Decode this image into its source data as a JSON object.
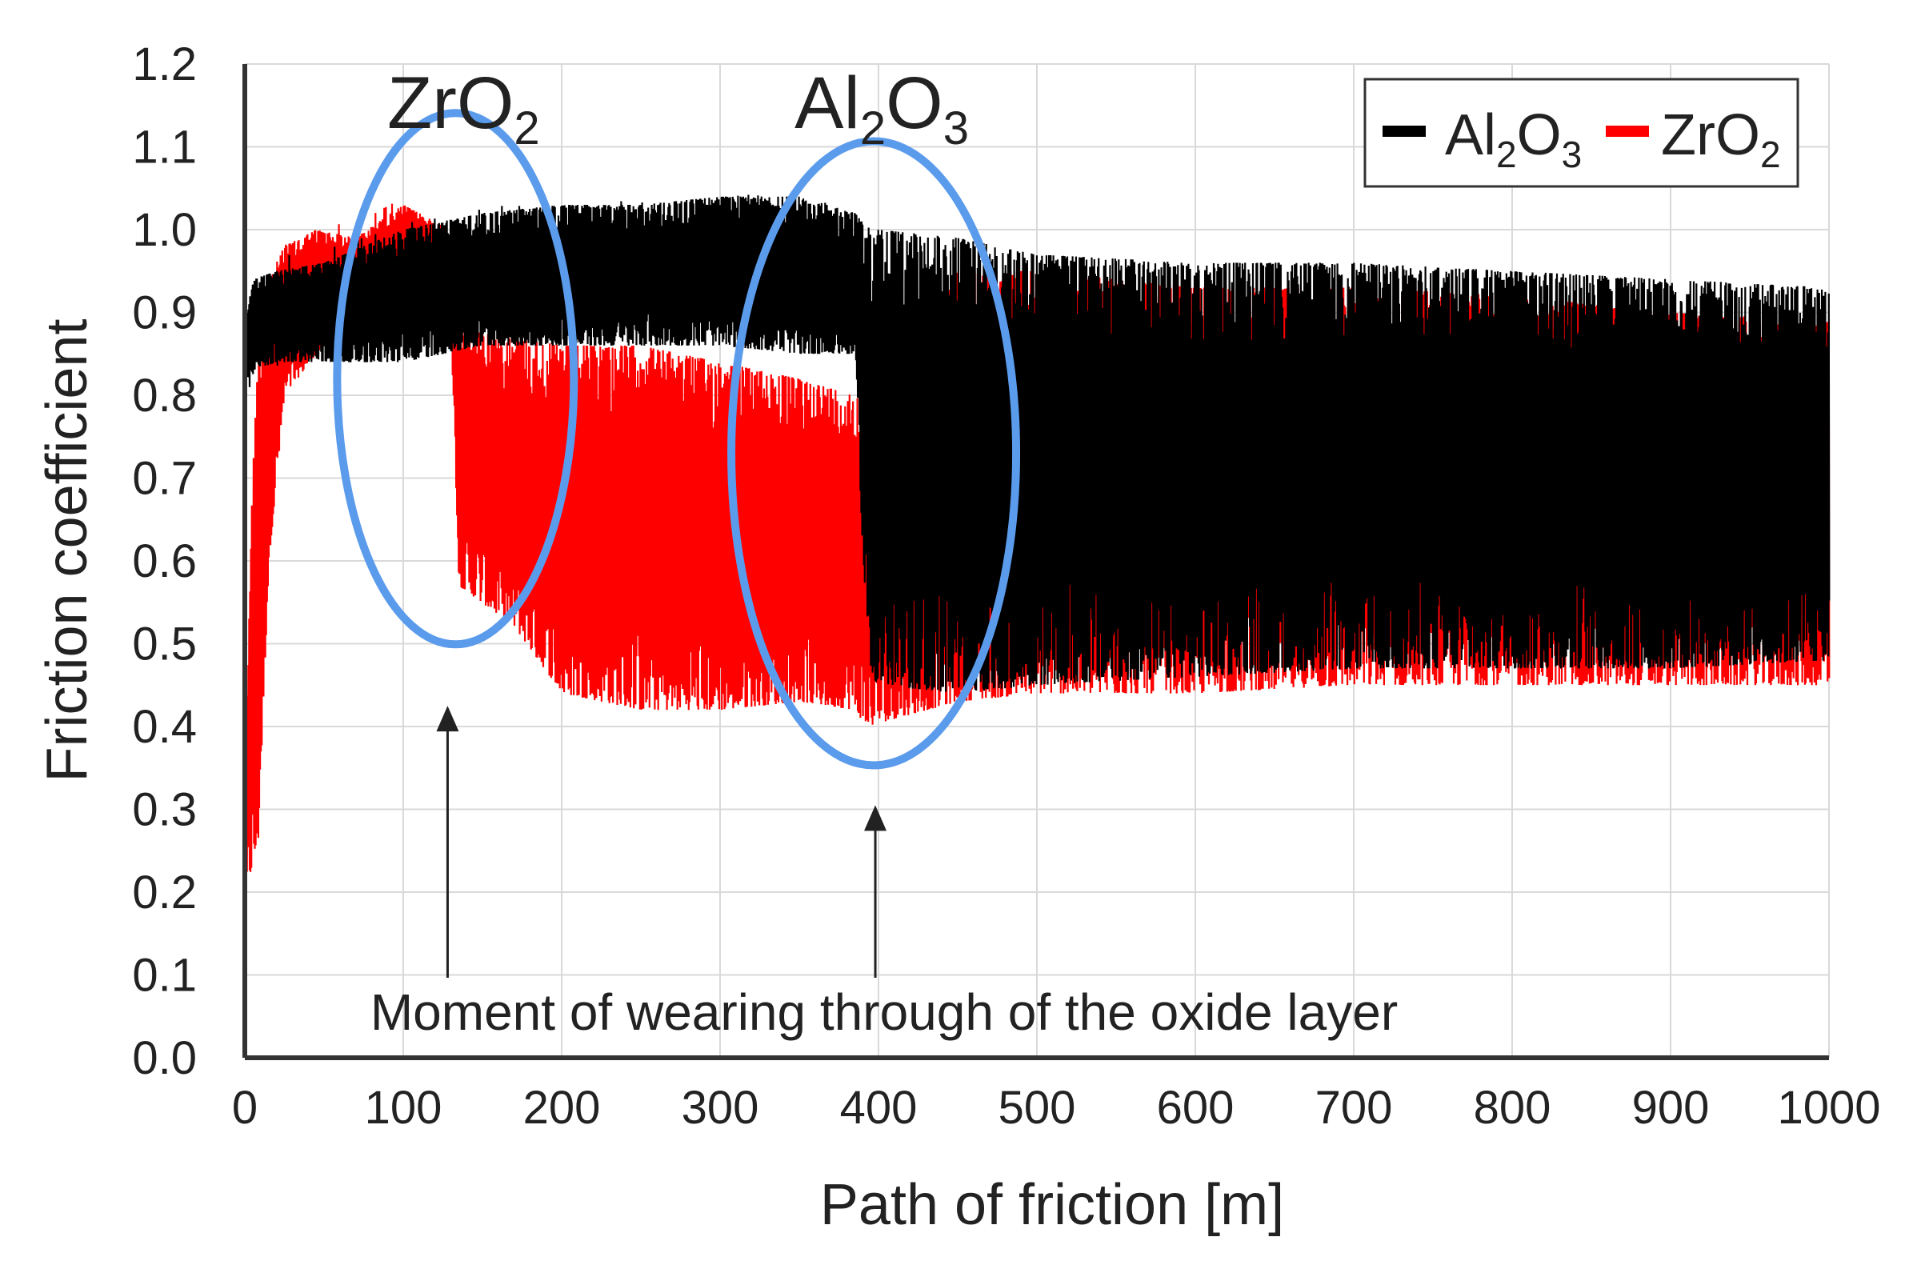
{
  "chart_data": {
    "type": "line",
    "title": "",
    "xlabel": "Path of friction [m]",
    "ylabel": "Friction coefficient",
    "xlim": [
      0,
      1000
    ],
    "ylim": [
      0,
      1.2
    ],
    "x_ticks": [
      0,
      100,
      200,
      300,
      400,
      500,
      600,
      700,
      800,
      900,
      1000
    ],
    "y_ticks": [
      0.0,
      0.1,
      0.2,
      0.3,
      0.4,
      0.5,
      0.6,
      0.7,
      0.8,
      0.9,
      1.0,
      1.1,
      1.2
    ],
    "x_tick_labels": [
      "0",
      "100",
      "200",
      "300",
      "400",
      "500",
      "600",
      "700",
      "800",
      "900",
      "1000"
    ],
    "y_tick_labels": [
      "0.0",
      "0.1",
      "0.2",
      "0.3",
      "0.4",
      "0.5",
      "0.6",
      "0.7",
      "0.8",
      "0.9",
      "1.0",
      "1.1",
      "1.2"
    ],
    "grid": true,
    "legend": {
      "position": "top-right",
      "entries": [
        {
          "base": "Al",
          "sub1": "2",
          "mid": "O",
          "sub2": "3",
          "color": "#000000"
        },
        {
          "base": "ZrO",
          "sub1": "2",
          "mid": "",
          "sub2": "",
          "color": "#ff0000"
        }
      ]
    },
    "series": [
      {
        "name": "ZrO2",
        "color": "#ff0000",
        "x": [
          0,
          3,
          8,
          15,
          25,
          45,
          70,
          100,
          130,
          135,
          170,
          200,
          250,
          300,
          350,
          385,
          392,
          450,
          500,
          600,
          700,
          800,
          900,
          1000
        ],
        "high": [
          0.24,
          0.6,
          0.85,
          0.94,
          0.98,
          1.0,
          0.99,
          1.03,
          1.0,
          0.88,
          0.87,
          0.86,
          0.86,
          0.84,
          0.82,
          0.8,
          0.8,
          0.95,
          0.95,
          0.93,
          0.93,
          0.92,
          0.9,
          0.89
        ],
        "low": [
          0.2,
          0.22,
          0.25,
          0.6,
          0.8,
          0.85,
          0.87,
          0.89,
          0.88,
          0.57,
          0.52,
          0.44,
          0.42,
          0.42,
          0.43,
          0.42,
          0.4,
          0.43,
          0.44,
          0.44,
          0.45,
          0.45,
          0.45,
          0.45
        ]
      },
      {
        "name": "Al2O3",
        "color": "#000000",
        "x": [
          0,
          5,
          20,
          50,
          100,
          150,
          200,
          250,
          300,
          350,
          385,
          390,
          395,
          400,
          450,
          500,
          600,
          700,
          800,
          900,
          1000
        ],
        "high": [
          0.88,
          0.94,
          0.95,
          0.96,
          1.0,
          1.02,
          1.03,
          1.03,
          1.04,
          1.04,
          1.02,
          1.01,
          1.0,
          1.0,
          0.99,
          0.97,
          0.96,
          0.96,
          0.95,
          0.94,
          0.93
        ],
        "low": [
          0.8,
          0.83,
          0.84,
          0.84,
          0.84,
          0.86,
          0.86,
          0.86,
          0.86,
          0.85,
          0.85,
          0.6,
          0.46,
          0.45,
          0.44,
          0.45,
          0.46,
          0.47,
          0.47,
          0.47,
          0.48
        ]
      }
    ],
    "annotations": [
      {
        "id": "zro2",
        "base": "ZrO",
        "sub1": "2",
        "mid": "",
        "sub2": "",
        "ellipse_center": [
          133,
          0.82
        ],
        "arrow_x": 128
      },
      {
        "id": "al2o3",
        "base": "Al",
        "sub1": "2",
        "mid": "O",
        "sub2": "3",
        "ellipse_center": [
          397,
          0.73
        ],
        "arrow_x": 398
      }
    ],
    "note": "Moment of wearing through of the oxide layer"
  },
  "colors": {
    "ellipse": "#5b9bec",
    "axis": "#333333",
    "grid": "#d9d9d9"
  }
}
